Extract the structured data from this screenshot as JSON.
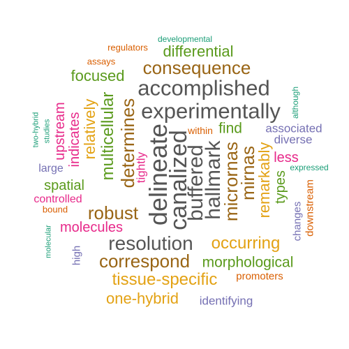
{
  "words": [
    {
      "text": "developmental",
      "color": "teal"
    },
    {
      "text": "regulators",
      "color": "orange"
    },
    {
      "text": "assays",
      "color": "orange"
    },
    {
      "text": "differential",
      "color": "green"
    },
    {
      "text": "consequence",
      "color": "brown"
    },
    {
      "text": "focused",
      "color": "green"
    },
    {
      "text": "accomplished",
      "color": "gray"
    },
    {
      "text": "experimentally",
      "color": "gray"
    },
    {
      "text": "although",
      "color": "teal"
    },
    {
      "text": "two-hybrid",
      "color": "teal"
    },
    {
      "text": "studies",
      "color": "teal"
    },
    {
      "text": "upstream",
      "color": "pink"
    },
    {
      "text": "indicates",
      "color": "pink"
    },
    {
      "text": "relatively",
      "color": "gold"
    },
    {
      "text": "multicellular",
      "color": "green"
    },
    {
      "text": "determines",
      "color": "brown"
    },
    {
      "text": "tightly",
      "color": "pink"
    },
    {
      "text": "delineate",
      "color": "gray"
    },
    {
      "text": "canalized",
      "color": "gray"
    },
    {
      "text": "buffered",
      "color": "gray"
    },
    {
      "text": "hallmark",
      "color": "gray"
    },
    {
      "text": "within",
      "color": "orange"
    },
    {
      "text": "find",
      "color": "green"
    },
    {
      "text": "micrornas",
      "color": "brown"
    },
    {
      "text": "mirnas",
      "color": "brown"
    },
    {
      "text": "remarkably",
      "color": "gold"
    },
    {
      "text": "associated",
      "color": "purple"
    },
    {
      "text": "diverse",
      "color": "purple"
    },
    {
      "text": "less",
      "color": "pink"
    },
    {
      "text": "expressed",
      "color": "teal"
    },
    {
      "text": "large",
      "color": "purple"
    },
    {
      "text": "spatial",
      "color": "green"
    },
    {
      "text": "types",
      "color": "green"
    },
    {
      "text": "controlled",
      "color": "pink"
    },
    {
      "text": "bound",
      "color": "orange"
    },
    {
      "text": "robust",
      "color": "brown"
    },
    {
      "text": "molecules",
      "color": "pink"
    },
    {
      "text": "molecular",
      "color": "teal"
    },
    {
      "text": "resolution",
      "color": "gray"
    },
    {
      "text": "occurring",
      "color": "gold"
    },
    {
      "text": "changes",
      "color": "purple"
    },
    {
      "text": "downstream",
      "color": "orange"
    },
    {
      "text": "high",
      "color": "purple"
    },
    {
      "text": "correspond",
      "color": "brown"
    },
    {
      "text": "morphological",
      "color": "green"
    },
    {
      "text": "tissue-specific",
      "color": "gold"
    },
    {
      "text": "promoters",
      "color": "orange"
    },
    {
      "text": "one-hybrid",
      "color": "gold"
    },
    {
      "text": "identifying",
      "color": "purple"
    }
  ]
}
